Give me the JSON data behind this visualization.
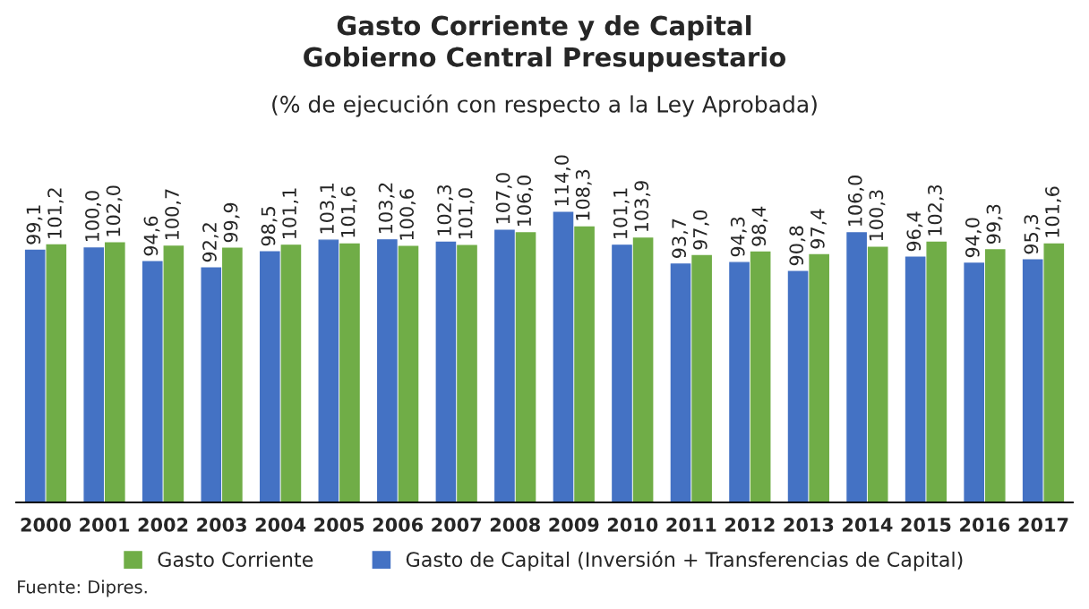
{
  "chart_data": {
    "type": "bar",
    "title": "Gasto Corriente y de Capital\nGobierno Central Presupuestario",
    "subtitle": "(% de ejecución con respecto a la Ley Aprobada)",
    "categories": [
      "2000",
      "2001",
      "2002",
      "2003",
      "2004",
      "2005",
      "2006",
      "2007",
      "2008",
      "2009",
      "2010",
      "2011",
      "2012",
      "2013",
      "2014",
      "2015",
      "2016",
      "2017"
    ],
    "series": [
      {
        "name": "Gasto de Capital (Inversión + Transferencias de Capital)",
        "color": "#4472c4",
        "values": [
          99.1,
          100.0,
          94.6,
          92.2,
          98.5,
          103.1,
          103.2,
          102.3,
          107.0,
          114.0,
          101.1,
          93.7,
          94.3,
          90.8,
          106.0,
          96.4,
          94.0,
          95.3
        ],
        "value_labels": [
          "99,1",
          "100,0",
          "94,6",
          "92,2",
          "98,5",
          "103,1",
          "103,2",
          "102,3",
          "107,0",
          "114,0",
          "101,1",
          "93,7",
          "94,3",
          "90,8",
          "106,0",
          "96,4",
          "94,0",
          "95,3"
        ]
      },
      {
        "name": "Gasto Corriente",
        "color": "#70ad47",
        "values": [
          101.2,
          102.0,
          100.7,
          99.9,
          101.1,
          101.6,
          100.6,
          101.0,
          106.0,
          108.3,
          103.9,
          97.0,
          98.4,
          97.4,
          100.3,
          102.3,
          99.3,
          101.6
        ],
        "value_labels": [
          "101,2",
          "102,0",
          "100,7",
          "99,9",
          "101,1",
          "101,6",
          "100,6",
          "101,0",
          "106,0",
          "108,3",
          "103,9",
          "97,0",
          "98,4",
          "97,4",
          "100,3",
          "102,3",
          "99,3",
          "101,6"
        ]
      }
    ],
    "legend": "bottom",
    "grid": false,
    "annotations": [
      "Fuente: Dipres."
    ]
  }
}
